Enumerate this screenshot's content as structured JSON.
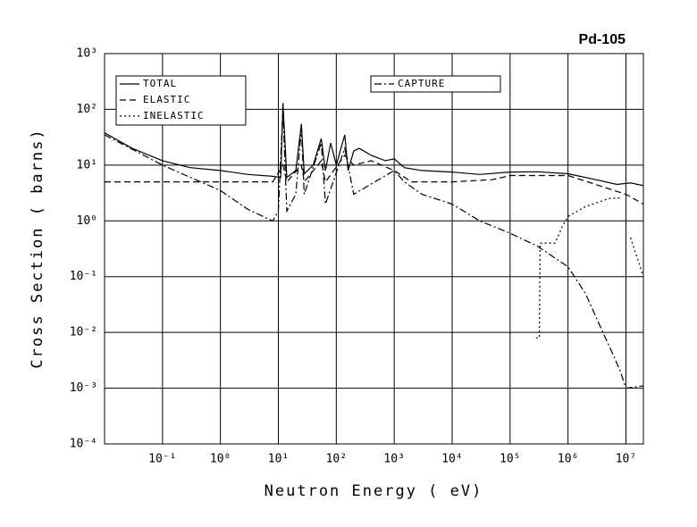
{
  "chart_data": {
    "type": "line",
    "title": "Pd-105",
    "x_label": "Neutron Energy ( eV)",
    "y_label": "Cross Section ( barns)",
    "xscale": "log",
    "yscale": "log",
    "grid": true,
    "xlim": [
      0.01,
      20000000
    ],
    "ylim": [
      0.0001,
      1000
    ],
    "xticks": [
      {
        "value": 0.1,
        "label": "10⁻¹"
      },
      {
        "value": 1,
        "label": "10⁰"
      },
      {
        "value": 10,
        "label": "10¹"
      },
      {
        "value": 100,
        "label": "10²"
      },
      {
        "value": 1000,
        "label": "10³"
      },
      {
        "value": 10000,
        "label": "10⁴"
      },
      {
        "value": 100000,
        "label": "10⁵"
      },
      {
        "value": 1000000,
        "label": "10⁶"
      },
      {
        "value": 10000000,
        "label": "10⁷"
      }
    ],
    "yticks": [
      {
        "value": 0.0001,
        "label": "10⁻⁴"
      },
      {
        "value": 0.001,
        "label": "10⁻³"
      },
      {
        "value": 0.01,
        "label": "10⁻²"
      },
      {
        "value": 0.1,
        "label": "10⁻¹"
      },
      {
        "value": 1,
        "label": "10⁰"
      },
      {
        "value": 10,
        "label": "10¹"
      },
      {
        "value": 100,
        "label": "10²"
      },
      {
        "value": 1000,
        "label": "10³"
      }
    ],
    "series": [
      {
        "name": "TOTAL",
        "color": "#000000",
        "dash": "none",
        "x": [
          0.01,
          0.03,
          0.1,
          0.3,
          1,
          3,
          8,
          11,
          12,
          14,
          20,
          25,
          28,
          40,
          55,
          65,
          80,
          100,
          140,
          160,
          200,
          250,
          400,
          700,
          1000,
          1500,
          3000,
          10000,
          30000,
          100000,
          300000,
          1000000,
          3000000,
          7000000,
          12000000,
          20000000
        ],
        "values": [
          38,
          20,
          12,
          9,
          8,
          6.8,
          6.3,
          6,
          130,
          6,
          8,
          55,
          7,
          10,
          30,
          8,
          25,
          10,
          35,
          8,
          18,
          20,
          15,
          12,
          13,
          9,
          8,
          7.5,
          6.8,
          7.5,
          7.6,
          7,
          5.5,
          4.5,
          4.8,
          4.3
        ]
      },
      {
        "name": "ELASTIC",
        "color": "#000000",
        "dash": "7,4",
        "x": [
          0.01,
          8,
          12,
          14,
          25,
          28,
          55,
          65,
          140,
          200,
          400,
          1000,
          2000,
          10000,
          50000,
          100000,
          1000000,
          3000000,
          10000000,
          20000000
        ],
        "values": [
          5,
          5,
          10,
          5,
          10,
          5,
          12,
          5,
          15,
          10,
          12,
          8,
          5,
          5,
          5.5,
          6.5,
          6.5,
          4.5,
          3,
          2
        ]
      },
      {
        "name": "INELASTIC",
        "color": "#000000",
        "dash": "2,3",
        "x": [
          280000,
          320000,
          330000,
          600000,
          800000,
          1000000,
          2000000,
          5000000,
          8000000,
          9000000,
          12000000,
          20000000
        ],
        "values": [
          0.008,
          0.008,
          0.4,
          0.4,
          0.8,
          1.2,
          1.8,
          2.5,
          2.6,
          null,
          0.5,
          0.1
        ]
      },
      {
        "name": "CAPTURE",
        "color": "#000000",
        "dash": "8,3,2,3",
        "x": [
          0.01,
          0.1,
          1,
          3,
          8,
          10,
          12,
          14,
          20,
          25,
          28,
          55,
          65,
          140,
          200,
          1000,
          1500,
          3000,
          10000,
          30000,
          100000,
          300000,
          1000000,
          2000000,
          4000000,
          6000000,
          8000000,
          10000000,
          20000000
        ],
        "values": [
          35,
          10,
          3.5,
          1.6,
          1,
          1.5,
          100,
          1.5,
          3,
          45,
          3,
          25,
          2,
          20,
          3,
          8,
          5,
          3,
          2,
          1,
          0.6,
          0.35,
          0.15,
          0.05,
          0.01,
          0.004,
          0.002,
          0.001,
          0.0011
        ]
      }
    ]
  }
}
